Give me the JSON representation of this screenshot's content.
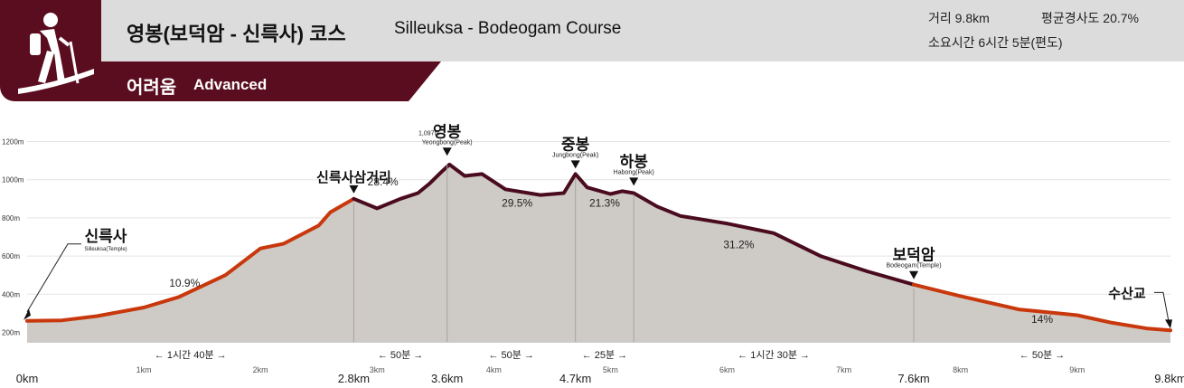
{
  "header": {
    "course_title_ko": "영봉(보덕암 - 신륵사) 코스",
    "course_title_en": "Silleuksa - Bodeogam Course",
    "level_ko": "어려움",
    "level_en": "Advanced",
    "distance": "거리 9.8km",
    "avg_slope": "평균경사도 20.7%",
    "duration": "소요시간 6시간 5분(편도)",
    "icon": "hiker-icon"
  },
  "colors": {
    "brand": "#5a0d1f",
    "header_bg": "#dcdcdc",
    "fill": "#cecac6",
    "easy_line": "#c8380c",
    "hard_line": "#4a0b1e"
  },
  "chart_data": {
    "type": "area",
    "title": "",
    "xlabel": "",
    "ylabel": "",
    "xlim": [
      0,
      9.8
    ],
    "ylim": [
      150,
      1250
    ],
    "y_ticks": [
      {
        "value": 200,
        "label": "200m"
      },
      {
        "value": 400,
        "label": "400m"
      },
      {
        "value": 600,
        "label": "600m"
      },
      {
        "value": 800,
        "label": "800m"
      },
      {
        "value": 1000,
        "label": "1000m"
      },
      {
        "value": 1200,
        "label": "1200m"
      }
    ],
    "x_ticks": [
      {
        "value": 1,
        "label": "1km"
      },
      {
        "value": 2,
        "label": "2km"
      },
      {
        "value": 3,
        "label": "3km"
      },
      {
        "value": 4,
        "label": "4km"
      },
      {
        "value": 5,
        "label": "5km"
      },
      {
        "value": 6,
        "label": "6km"
      },
      {
        "value": 7,
        "label": "7km"
      },
      {
        "value": 8,
        "label": "8km"
      },
      {
        "value": 9,
        "label": "9km"
      }
    ],
    "x_end_labels": [
      {
        "value": 0,
        "label": "0km"
      },
      {
        "value": 2.8,
        "label": "2.8km"
      },
      {
        "value": 3.6,
        "label": "3.6km"
      },
      {
        "value": 4.7,
        "label": "4.7km"
      },
      {
        "value": 7.6,
        "label": "7.6km"
      },
      {
        "value": 9.8,
        "label": "9.8km"
      }
    ],
    "profile": {
      "x": [
        0,
        0.3,
        0.6,
        1.0,
        1.3,
        1.7,
        2.0,
        2.2,
        2.5,
        2.6,
        2.8,
        3.0,
        3.2,
        3.35,
        3.45,
        3.55,
        3.62,
        3.75,
        3.9,
        4.1,
        4.4,
        4.6,
        4.7,
        4.8,
        5.0,
        5.1,
        5.2,
        5.4,
        5.6,
        6.0,
        6.4,
        6.8,
        7.2,
        7.6,
        8.0,
        8.5,
        9.0,
        9.3,
        9.6,
        9.8
      ],
      "y": [
        260,
        263,
        285,
        330,
        385,
        500,
        640,
        665,
        760,
        830,
        900,
        850,
        900,
        930,
        980,
        1040,
        1080,
        1020,
        1030,
        950,
        920,
        930,
        1030,
        960,
        925,
        940,
        930,
        860,
        810,
        770,
        720,
        600,
        520,
        450,
        390,
        320,
        290,
        250,
        220,
        210
      ]
    },
    "series": [
      {
        "name": "easy",
        "x_range": [
          0,
          2.8
        ],
        "color": "#c8380c"
      },
      {
        "name": "hard",
        "x_range": [
          2.8,
          7.6
        ],
        "color": "#4a0b1e"
      },
      {
        "name": "easy",
        "x_range": [
          7.6,
          9.8
        ],
        "color": "#c8380c"
      }
    ],
    "markers": [
      {
        "x": 2.8,
        "y": 900,
        "name": "신륵사삼거리",
        "sub": ""
      },
      {
        "x": 3.6,
        "y": 1097,
        "name": "영봉",
        "sub": "Yeongbong(Peak)",
        "elev": "1,097m"
      },
      {
        "x": 4.7,
        "y": 1030,
        "name": "중봉",
        "sub": "Jungbong(Peak)"
      },
      {
        "x": 5.2,
        "y": 940,
        "name": "하봉",
        "sub": "Habong(Peak)"
      },
      {
        "x": 7.6,
        "y": 450,
        "name": "보덕암",
        "sub": "Bodeogam(Temple)"
      }
    ],
    "endpoints": [
      {
        "x": 0,
        "y": 260,
        "name": "신륵사",
        "sub": "Silleuksa(Temple)"
      },
      {
        "x": 9.8,
        "y": 210,
        "name": "수산교",
        "sub": ""
      }
    ],
    "slope_labels": [
      {
        "x": 1.35,
        "y": 440,
        "text": "10.9%"
      },
      {
        "x": 3.05,
        "y": 970,
        "text": "28.4%"
      },
      {
        "x": 4.2,
        "y": 860,
        "text": "29.5%"
      },
      {
        "x": 4.95,
        "y": 860,
        "text": "21.3%"
      },
      {
        "x": 6.1,
        "y": 640,
        "text": "31.2%"
      },
      {
        "x": 8.7,
        "y": 250,
        "text": "14%"
      }
    ],
    "segment_times": [
      {
        "x": 1.4,
        "text": "← 1시간 40분 →"
      },
      {
        "x": 3.2,
        "text": "← 50분 →"
      },
      {
        "x": 4.15,
        "text": "← 50분 →"
      },
      {
        "x": 4.95,
        "text": "← 25분 →"
      },
      {
        "x": 6.4,
        "text": "← 1시간 30분 →"
      },
      {
        "x": 8.7,
        "text": "← 50분 →"
      }
    ]
  }
}
